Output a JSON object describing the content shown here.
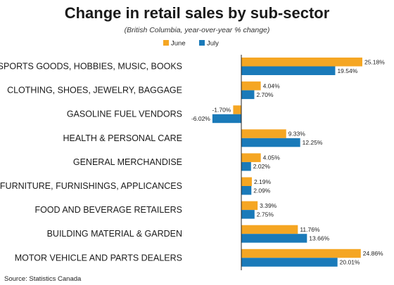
{
  "chart_data": {
    "type": "bar",
    "orientation": "horizontal",
    "title": "Change in retail sales by sub-sector",
    "subtitle": "(British Columbia, year-over-year % change)",
    "source": "Source: Statistics Canada",
    "legend_position": "top",
    "categories": [
      "SPORTS GOODS, HOBBIES, MUSIC, BOOKS",
      "CLOTHING, SHOES, JEWELRY, BAGGAGE",
      "GASOLINE FUEL VENDORS",
      "HEALTH & PERSONAL CARE",
      "GENERAL MERCHANDISE",
      "FURNITURE, FURNISHINGS, APPLICANCES",
      "FOOD AND BEVERAGE RETAILERS",
      "BUILDING MATERIAL & GARDEN",
      "MOTOR VEHICLE AND PARTS DEALERS"
    ],
    "series": [
      {
        "name": "June",
        "color": "#f5a623",
        "values": [
          25.18,
          4.04,
          -1.7,
          9.33,
          4.05,
          2.19,
          3.39,
          11.76,
          24.86
        ],
        "labels": [
          "25.18%",
          "4.04%",
          "-1.70%",
          "9.33%",
          "4.05%",
          "2.19%",
          "3.39%",
          "11.76%",
          "24.86%"
        ]
      },
      {
        "name": "July",
        "color": "#1a7ab9",
        "values": [
          19.54,
          2.7,
          -6.02,
          12.25,
          2.02,
          2.09,
          2.75,
          13.66,
          20.01
        ],
        "labels": [
          "19.54%",
          "2.70%",
          "-6.02%",
          "12.25%",
          "2.02%",
          "2.09%",
          "2.75%",
          "13.66%",
          "20.01%"
        ]
      }
    ],
    "grid": false
  }
}
